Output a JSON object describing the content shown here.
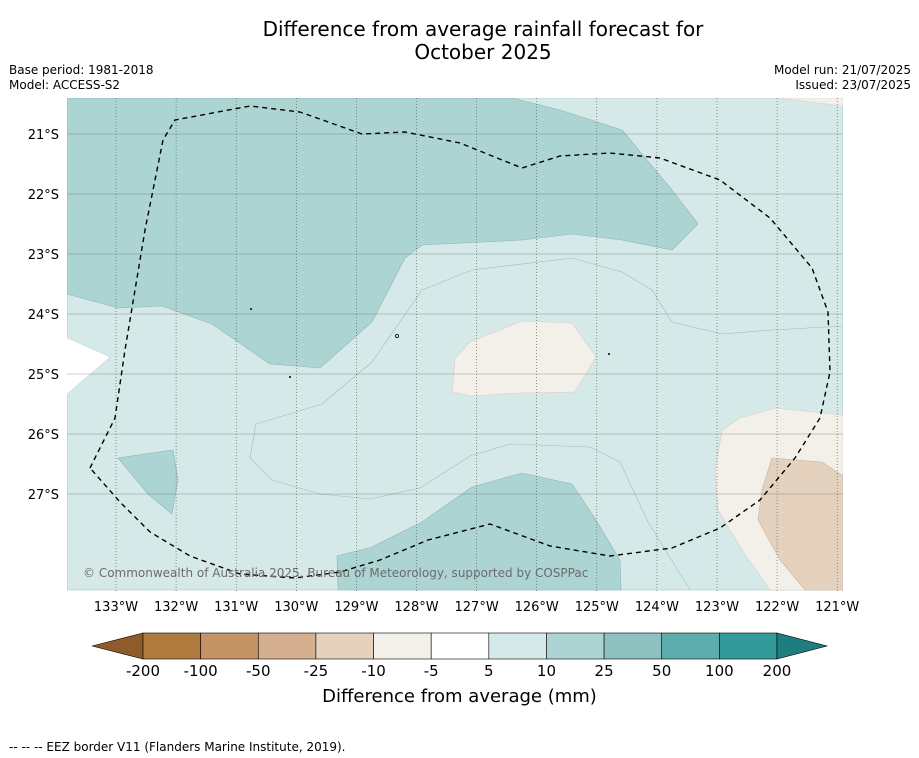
{
  "title": {
    "line1": "Difference from average rainfall forecast for",
    "line2": "October 2025"
  },
  "meta": {
    "base_period": "Base period: 1981-2018",
    "model": "Model: ACCESS-S2",
    "model_run": "Model run: 21/07/2025",
    "issued": "Issued: 23/07/2025"
  },
  "map": {
    "lon_ticks": [
      "133°W",
      "132°W",
      "131°W",
      "130°W",
      "129°W",
      "128°W",
      "127°W",
      "126°W",
      "125°W",
      "124°W",
      "123°W",
      "122°W",
      "121°W"
    ],
    "lat_ticks": [
      "21°S",
      "22°S",
      "23°S",
      "24°S",
      "25°S",
      "26°S",
      "27°S"
    ],
    "copyright": "© Commonwealth of Australia 2025, Bureau of Meteorology, supported by COSPPac"
  },
  "colorbar": {
    "labels": [
      "-200",
      "-100",
      "-50",
      "-25",
      "-10",
      "-5",
      "5",
      "10",
      "25",
      "50",
      "100",
      "200"
    ],
    "colors": [
      "#b07a3e",
      "#c49467",
      "#d4b090",
      "#e4d2bf",
      "#f3efe9",
      "#ffffff",
      "#d5e9e8",
      "#acd4d3",
      "#8dc1c0",
      "#5dadac",
      "#33999a"
    ],
    "under_color": "#8e5c2a",
    "over_color": "#1e7d7e",
    "title": "Difference from average (mm)"
  },
  "footnote": "--  --  -- EEZ border V11 (Flanders Marine Institute, 2019)."
}
